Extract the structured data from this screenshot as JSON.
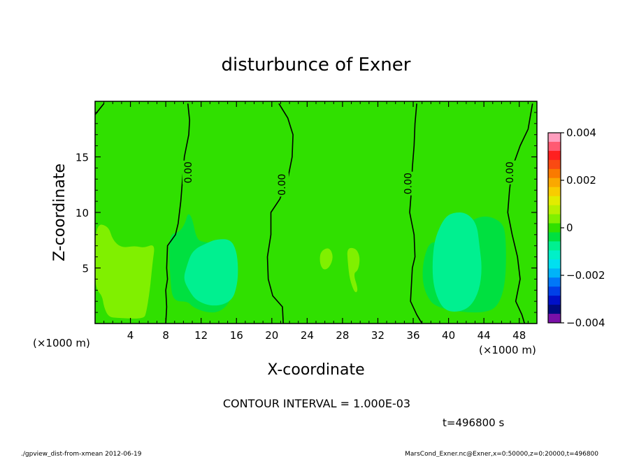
{
  "chart_data": {
    "type": "heatmap",
    "title": "disturbunce of Exner",
    "xlabel": "X-coordinate",
    "ylabel": "Z-coordinate",
    "x_unit": "(×1000 m)",
    "y_unit": "(×1000 m)",
    "xlim": [
      0,
      50
    ],
    "ylim": [
      0,
      20
    ],
    "xticks": [
      4,
      8,
      12,
      16,
      20,
      24,
      28,
      32,
      36,
      40,
      44,
      48
    ],
    "xtick_labels": [
      "4",
      "8",
      "12",
      "16",
      "20",
      "24",
      "28",
      "32",
      "36",
      "40",
      "44",
      "48"
    ],
    "yticks": [
      5,
      10,
      15
    ],
    "ytick_labels": [
      "5",
      "10",
      "15"
    ],
    "contour_interval_text": "CONTOUR INTERVAL = 1.000E-03",
    "time_text": "t=496800 s",
    "contour_level": 0,
    "contour_label": "0.00",
    "zero_contours": [
      [
        [
          0,
          18.8
        ],
        [
          1.0,
          19.8
        ]
      ],
      [
        [
          10.5,
          19.8
        ],
        [
          10.7,
          18.3
        ],
        [
          10.6,
          17.0
        ],
        [
          10.1,
          15.0
        ],
        [
          9.9,
          13.0
        ],
        [
          9.7,
          11.0
        ],
        [
          9.4,
          9.0
        ],
        [
          9.1,
          8.0
        ],
        [
          8.2,
          7.0
        ],
        [
          8.1,
          5.0
        ],
        [
          8.2,
          4.0
        ],
        [
          8.0,
          3.0
        ],
        [
          8.1,
          1.5
        ],
        [
          8.0,
          0
        ]
      ],
      [
        [
          20.8,
          19.8
        ],
        [
          21.8,
          18.5
        ],
        [
          22.4,
          17.0
        ],
        [
          22.3,
          15.0
        ],
        [
          21.8,
          13.0
        ],
        [
          20.9,
          11.2
        ],
        [
          19.9,
          10.0
        ],
        [
          19.9,
          8.0
        ],
        [
          19.5,
          6.0
        ],
        [
          19.6,
          4.0
        ],
        [
          20.1,
          2.5
        ],
        [
          21.2,
          1.5
        ],
        [
          21.3,
          0
        ]
      ],
      [
        [
          36.4,
          19.8
        ],
        [
          36.2,
          18.0
        ],
        [
          36.1,
          16.0
        ],
        [
          35.9,
          14.0
        ],
        [
          35.8,
          12.0
        ],
        [
          35.6,
          10.0
        ],
        [
          36.1,
          8.0
        ],
        [
          36.2,
          6.0
        ],
        [
          35.9,
          5.0
        ],
        [
          35.8,
          3.5
        ],
        [
          35.7,
          2.0
        ],
        [
          36.4,
          0.8
        ],
        [
          37.0,
          0
        ]
      ],
      [
        [
          49.5,
          19.8
        ],
        [
          49.0,
          17.5
        ],
        [
          48.1,
          16.0
        ],
        [
          47.2,
          14.0
        ],
        [
          46.9,
          12.0
        ],
        [
          46.7,
          10.0
        ],
        [
          47.2,
          8.0
        ],
        [
          47.8,
          6.0
        ],
        [
          48.1,
          4.0
        ],
        [
          47.6,
          2.0
        ],
        [
          48.3,
          0.8
        ],
        [
          48.6,
          0
        ]
      ]
    ],
    "label_positions": [
      [
        10.6,
        13.6
      ],
      [
        21.2,
        12.5
      ],
      [
        35.5,
        12.6
      ],
      [
        47.0,
        13.6
      ]
    ],
    "colorbar": {
      "min": -0.004,
      "max": 0.004,
      "tick_values": [
        0.004,
        0.002,
        0,
        -0.002,
        -0.004
      ],
      "tick_labels": [
        "0.004",
        "0.002",
        "0",
        "−0.002",
        "−0.004"
      ],
      "colors": [
        "#ff9ebe",
        "#ff5a72",
        "#ff2020",
        "#fa4a12",
        "#fa7a00",
        "#faa800",
        "#f8cc00",
        "#e2ec00",
        "#b8f000",
        "#80f000",
        "#30e000",
        "#00e040",
        "#00f090",
        "#00f0c8",
        "#00e0f0",
        "#00b4f8",
        "#0078f8",
        "#0040e8",
        "#0010c8",
        "#000a80",
        "#7a10a8"
      ]
    },
    "regions": [
      {
        "level": 0.0005,
        "color": "#80f000",
        "points": [
          [
            0,
            9.0
          ],
          [
            1.5,
            8.8
          ],
          [
            2.0,
            7.5
          ],
          [
            3.0,
            6.8
          ],
          [
            4.5,
            7.0
          ],
          [
            5.5,
            6.8
          ],
          [
            6.8,
            7.2
          ],
          [
            6.5,
            5.5
          ],
          [
            6.2,
            3.0
          ],
          [
            5.8,
            1.0
          ],
          [
            5.5,
            0.4
          ],
          [
            2.5,
            0.5
          ],
          [
            1.5,
            0.6
          ],
          [
            1.0,
            1.5
          ],
          [
            0.8,
            2.5
          ],
          [
            0.2,
            3.0
          ],
          [
            0,
            4.0
          ]
        ]
      },
      {
        "level": 0.0005,
        "color": "#80f000",
        "points": [
          [
            25.5,
            6.5
          ],
          [
            26.5,
            6.9
          ],
          [
            27.0,
            6.0
          ],
          [
            26.5,
            5.0
          ],
          [
            25.8,
            4.8
          ],
          [
            25.4,
            5.5
          ]
        ]
      },
      {
        "level": 0.0005,
        "color": "#80f000",
        "points": [
          [
            28.5,
            6.8
          ],
          [
            29.5,
            6.8
          ],
          [
            30.0,
            6.0
          ],
          [
            29.8,
            4.8
          ],
          [
            29.2,
            4.5
          ],
          [
            29.8,
            3.0
          ],
          [
            29.4,
            2.7
          ],
          [
            28.8,
            4.0
          ],
          [
            28.6,
            5.5
          ]
        ]
      },
      {
        "level": -0.0005,
        "color": "#00e040",
        "points": [
          [
            8.3,
            8.0
          ],
          [
            9.5,
            8.2
          ],
          [
            10.2,
            9.0
          ],
          [
            10.5,
            10.0
          ],
          [
            11.0,
            9.5
          ],
          [
            11.5,
            7.5
          ],
          [
            12.5,
            7.3
          ],
          [
            14.0,
            7.2
          ],
          [
            15.0,
            6.0
          ],
          [
            15.5,
            3.0
          ],
          [
            15.2,
            1.8
          ],
          [
            14.0,
            1.0
          ],
          [
            12.5,
            1.0
          ],
          [
            11.0,
            1.5
          ],
          [
            10.5,
            2.0
          ],
          [
            8.8,
            2.0
          ],
          [
            8.5,
            4.0
          ]
        ]
      },
      {
        "level": -0.0005,
        "color": "#00e040",
        "points": [
          [
            37.2,
            6.0
          ],
          [
            38.0,
            7.5
          ],
          [
            39.5,
            7.0
          ],
          [
            40.5,
            8.0
          ],
          [
            42.0,
            9.0
          ],
          [
            44.0,
            9.8
          ],
          [
            46.0,
            9.2
          ],
          [
            46.5,
            8.0
          ],
          [
            46.5,
            4.0
          ],
          [
            45.8,
            1.8
          ],
          [
            44.5,
            1.0
          ],
          [
            41.5,
            1.0
          ],
          [
            38.5,
            1.5
          ],
          [
            37.5,
            2.5
          ],
          [
            37.0,
            4.0
          ]
        ]
      },
      {
        "level": -0.001,
        "color": "#00f090",
        "points": [
          [
            10.3,
            5.0
          ],
          [
            11.0,
            6.6
          ],
          [
            12.8,
            7.3
          ],
          [
            13.8,
            7.6
          ],
          [
            15.3,
            7.6
          ],
          [
            16.0,
            6.6
          ],
          [
            16.2,
            5.0
          ],
          [
            16.1,
            3.5
          ],
          [
            15.5,
            2.0
          ],
          [
            13.5,
            1.5
          ],
          [
            11.5,
            2.0
          ],
          [
            10.6,
            3.0
          ],
          [
            10.0,
            4.0
          ]
        ]
      },
      {
        "level": -0.001,
        "color": "#00f090",
        "points": [
          [
            38.2,
            6.0
          ],
          [
            38.5,
            7.8
          ],
          [
            39.5,
            9.5
          ],
          [
            40.5,
            10.0
          ],
          [
            42.0,
            10.0
          ],
          [
            43.2,
            9.0
          ],
          [
            43.5,
            7.0
          ],
          [
            43.8,
            5.0
          ],
          [
            43.5,
            3.0
          ],
          [
            42.5,
            1.5
          ],
          [
            41.0,
            1.0
          ],
          [
            39.5,
            1.2
          ],
          [
            38.6,
            2.5
          ],
          [
            38.2,
            4.0
          ]
        ]
      }
    ]
  },
  "footer": {
    "left_text": "./gpview_dist-from-xmean  2012-06-19",
    "right_text": "MarsCond_Exner.nc@Exner,x=0:50000,z=0:20000,t=496800"
  },
  "colors": {
    "background_field": "#30e000",
    "frame": "#000000"
  }
}
